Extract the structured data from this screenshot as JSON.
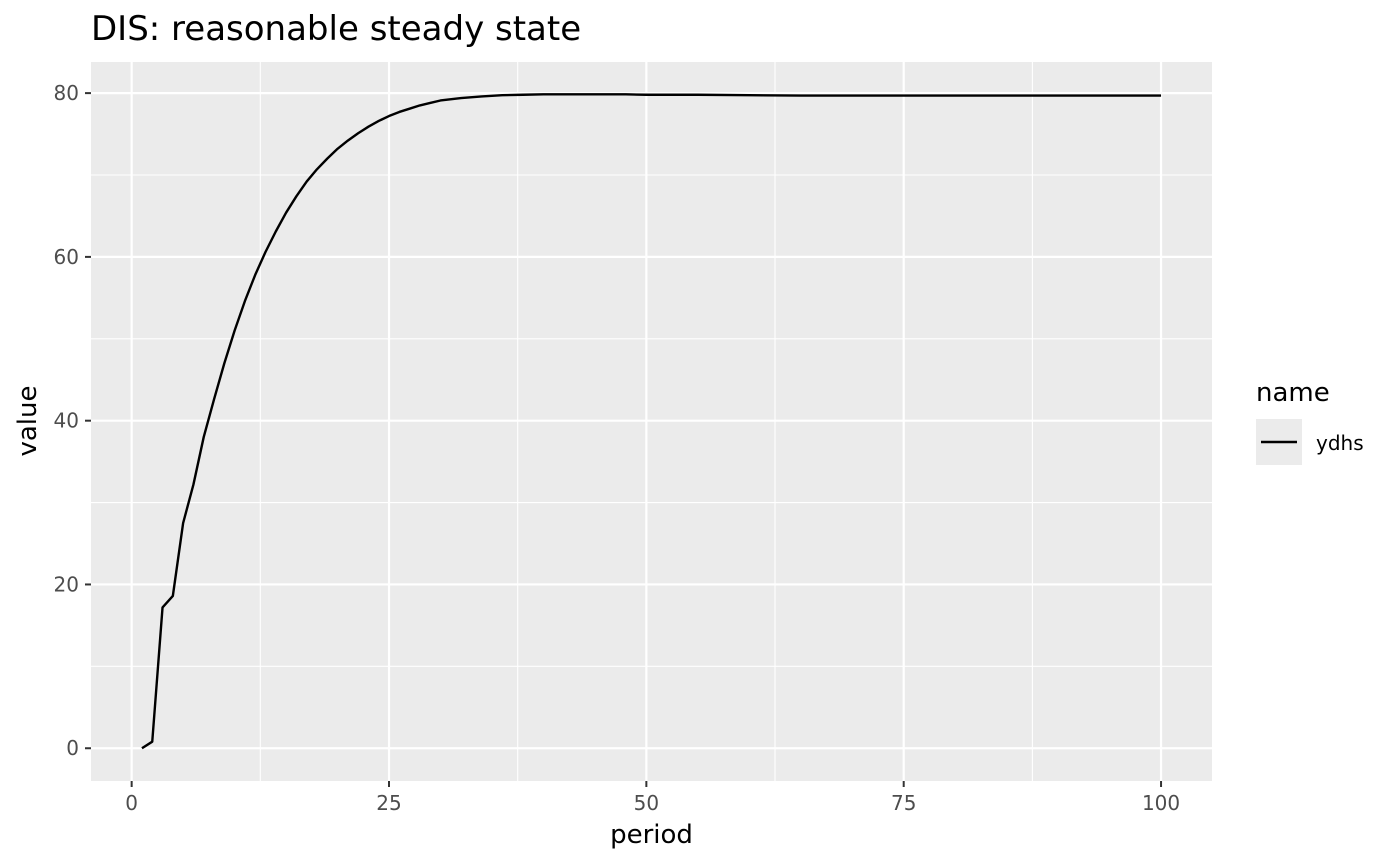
{
  "chart_data": {
    "type": "line",
    "title": "DIS: reasonable steady state",
    "xlabel": "period",
    "ylabel": "value",
    "xlim": [
      -3.95,
      104.95
    ],
    "ylim": [
      -4.0,
      83.8
    ],
    "x_ticks": [
      0,
      25,
      50,
      75,
      100
    ],
    "y_ticks": [
      0,
      20,
      40,
      60,
      80
    ],
    "x_tick_labels": [
      "0",
      "25",
      "50",
      "75",
      "100"
    ],
    "y_tick_labels": [
      "0",
      "20",
      "40",
      "60",
      "80"
    ],
    "x_minor_ticks": [
      12.5,
      37.5,
      62.5,
      87.5
    ],
    "y_minor_ticks": [
      10,
      30,
      50,
      70
    ],
    "grid": true,
    "legend": {
      "title": "name",
      "position": "right",
      "entries": [
        {
          "label": "ydhs",
          "color": "#000000"
        }
      ]
    },
    "colors": {
      "panel": "#ebebeb",
      "grid": "#ffffff",
      "line": "#000000"
    },
    "series": [
      {
        "name": "ydhs",
        "x": [
          1,
          2,
          3,
          4,
          5,
          6,
          7,
          8,
          9,
          10,
          11,
          12,
          13,
          14,
          15,
          16,
          17,
          18,
          19,
          20,
          21,
          22,
          23,
          24,
          25,
          26,
          27,
          28,
          29,
          30,
          32,
          34,
          36,
          38,
          40,
          42,
          44,
          46,
          48,
          50,
          55,
          60,
          65,
          70,
          75,
          80,
          85,
          90,
          95,
          100
        ],
        "y": [
          0,
          0.8,
          17.2,
          18.6,
          27.5,
          32.2,
          38.0,
          42.6,
          47.0,
          51.0,
          54.6,
          57.8,
          60.6,
          63.1,
          65.4,
          67.4,
          69.2,
          70.7,
          72.0,
          73.2,
          74.2,
          75.1,
          75.9,
          76.6,
          77.2,
          77.7,
          78.1,
          78.5,
          78.8,
          79.1,
          79.4,
          79.6,
          79.75,
          79.8,
          79.85,
          79.85,
          79.85,
          79.85,
          79.85,
          79.8,
          79.8,
          79.75,
          79.7,
          79.7,
          79.7,
          79.7,
          79.7,
          79.7,
          79.7,
          79.7
        ]
      }
    ]
  }
}
